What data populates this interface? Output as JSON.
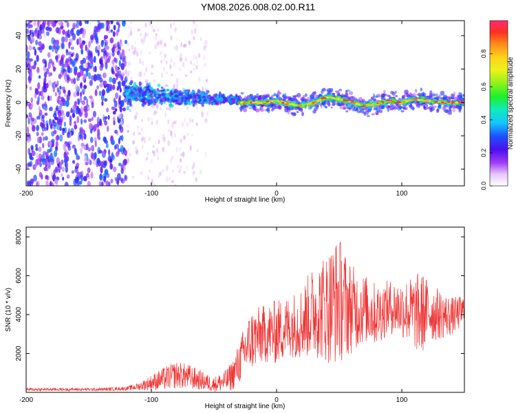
{
  "title": "YM08.2026.008.02.00.R11",
  "chart_data": [
    {
      "type": "heatmap",
      "xlabel": "Height of straight line (km)",
      "ylabel": "Frequency (Hz)",
      "xlim": [
        -200,
        150
      ],
      "ylim": [
        -50,
        49
      ],
      "xticks": [
        -200,
        -100,
        0,
        100
      ],
      "yticks": [
        -40,
        -20,
        0,
        20,
        40
      ],
      "colorbar": {
        "label": "Normalized spectral amplitude",
        "range": [
          0,
          1
        ],
        "ticks": [
          0.0,
          0.2,
          0.4,
          0.6,
          0.8
        ],
        "tick_labels": [
          "0.0",
          "0.2",
          "0.4",
          "0.6",
          "0.8"
        ]
      },
      "regions": [
        {
          "name": "broadband noise",
          "x_range": [
            -200,
            -120
          ],
          "freq_range": [
            -50,
            49
          ],
          "amplitude": 0.15
        },
        {
          "name": "sparse noise",
          "x_range": [
            -120,
            -55
          ],
          "freq_range": [
            -50,
            49
          ],
          "amplitude": 0.05
        },
        {
          "name": "signal onset band",
          "x_range": [
            -120,
            -30
          ],
          "freq_center": 5,
          "freq_width": 10,
          "amplitude": 0.3
        },
        {
          "name": "spectral line",
          "x_range": [
            -30,
            150
          ],
          "freq_center": 0,
          "freq_width": 3,
          "amplitude": 0.9
        }
      ],
      "ridge": {
        "x": [
          -30,
          -10,
          0,
          10,
          20,
          30,
          40,
          50,
          60,
          70,
          80,
          90,
          100,
          110,
          120,
          130,
          140,
          150
        ],
        "freq": [
          0,
          0,
          1,
          -1,
          -2,
          0,
          3,
          2,
          0,
          -2,
          -1,
          1,
          0,
          2,
          1,
          0,
          0,
          0
        ]
      }
    },
    {
      "type": "line",
      "xlabel": "Height of straight line (km)",
      "ylabel": "SNR (10 * v/v)",
      "xlim": [
        -200,
        150
      ],
      "ylim": [
        0,
        8500
      ],
      "xticks": [
        -200,
        -100,
        0,
        100
      ],
      "yticks": [
        2000,
        4000,
        6000,
        8000
      ],
      "series": [
        {
          "name": "SNR",
          "color": "#ee3333",
          "x": [
            -200,
            -180,
            -160,
            -140,
            -120,
            -110,
            -100,
            -90,
            -80,
            -70,
            -60,
            -50,
            -40,
            -35,
            -30,
            -25,
            -20,
            -10,
            0,
            10,
            20,
            30,
            40,
            45,
            50,
            55,
            60,
            70,
            80,
            90,
            100,
            110,
            115,
            120,
            130,
            140,
            150
          ],
          "mid": [
            150,
            150,
            150,
            150,
            200,
            300,
            500,
            700,
            900,
            800,
            600,
            400,
            600,
            900,
            1500,
            2200,
            2700,
            3000,
            3100,
            3400,
            3600,
            4200,
            4400,
            4600,
            4800,
            4500,
            4300,
            4300,
            4000,
            4400,
            4300,
            4100,
            4000,
            4200,
            4000,
            3900,
            4200
          ],
          "amp": [
            80,
            80,
            80,
            80,
            100,
            200,
            400,
            600,
            700,
            650,
            500,
            400,
            600,
            800,
            1100,
            1400,
            1600,
            1500,
            1700,
            1600,
            1900,
            2400,
            2900,
            3200,
            3300,
            2800,
            2300,
            1800,
            1600,
            1400,
            1500,
            1900,
            2300,
            1700,
            1300,
            1000,
            800
          ]
        }
      ]
    }
  ]
}
